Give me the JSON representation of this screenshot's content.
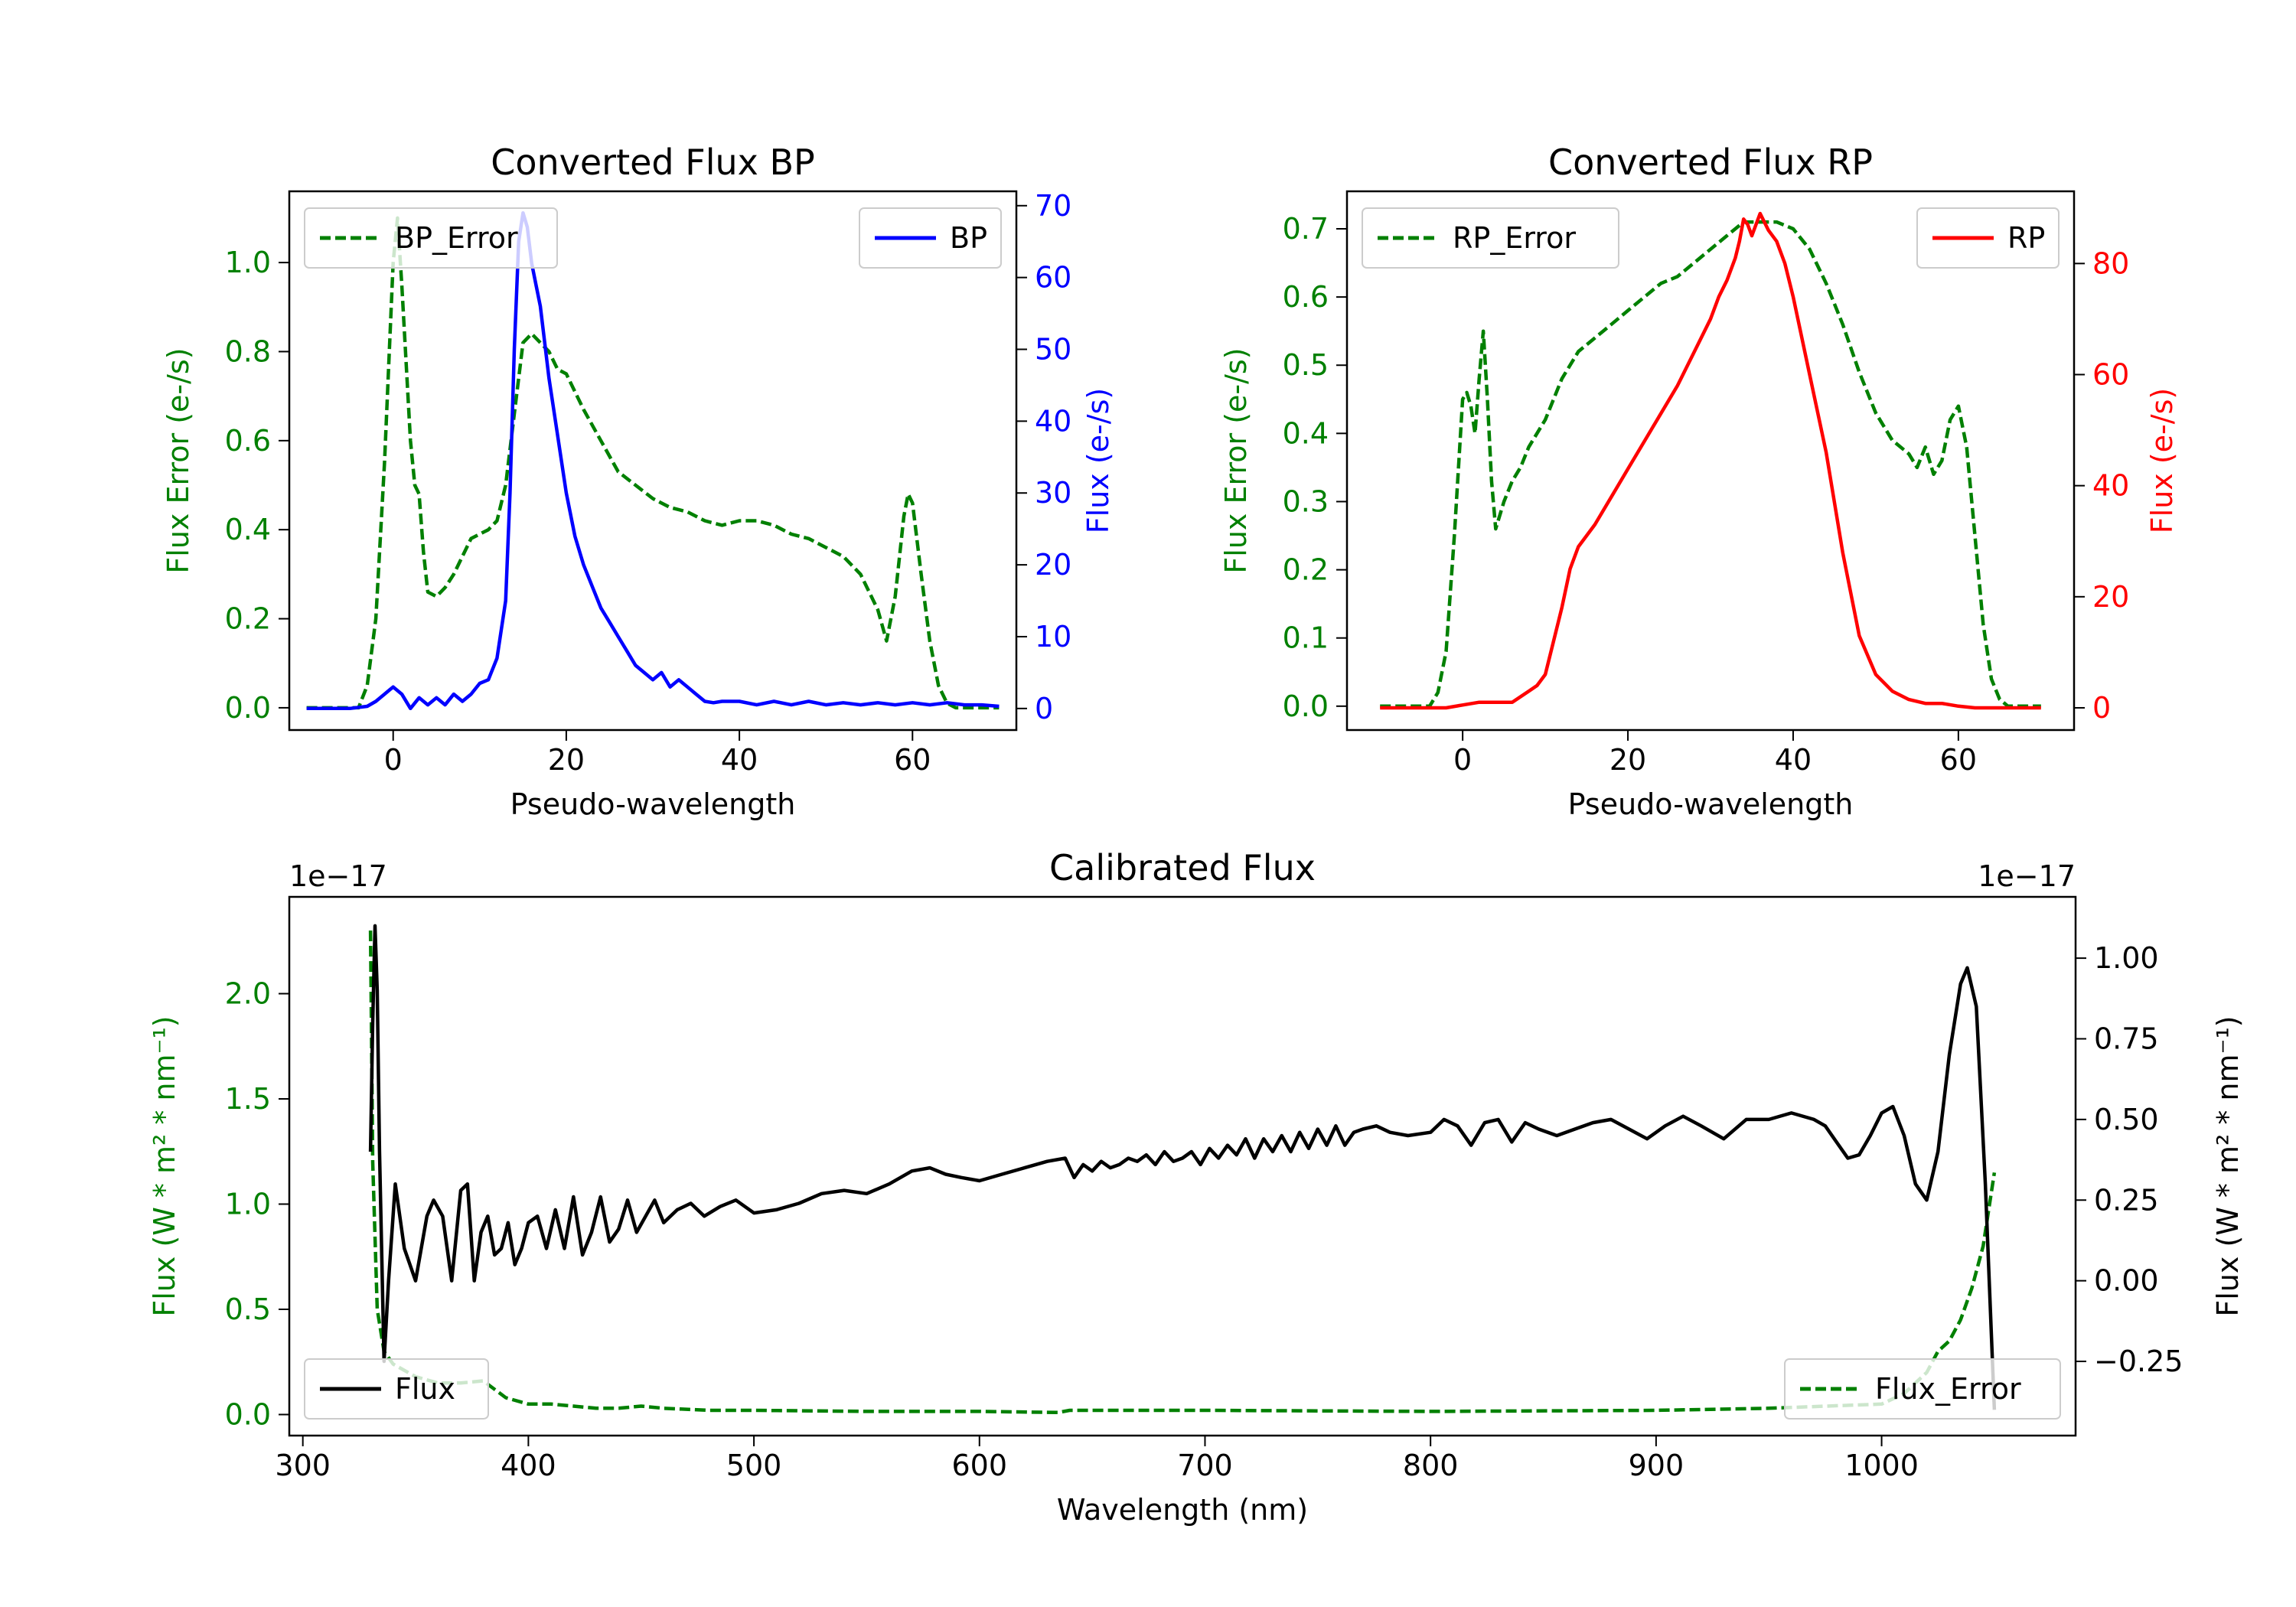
{
  "colors": {
    "bp": "#0000ff",
    "rp": "#ff0000",
    "error": "#008000",
    "flux": "#000000",
    "axis": "#000000"
  },
  "chart_data": [
    {
      "id": "bp",
      "type": "line",
      "title": "Converted Flux BP",
      "xlabel": "Pseudo-wavelength",
      "ylabel_left": "Flux Error (e-/s)",
      "ylabel_right": "Flux (e-/s)",
      "xlim": [
        -12,
        72
      ],
      "ylim_left": [
        -0.05,
        1.16
      ],
      "ylim_right": [
        -3,
        72
      ],
      "xticks": [
        0,
        20,
        40,
        60
      ],
      "yticks_left": [
        0.0,
        0.2,
        0.4,
        0.6,
        0.8,
        1.0
      ],
      "yticks_right": [
        0,
        10,
        20,
        30,
        40,
        50,
        60,
        70
      ],
      "legend_left": {
        "label": "BP_Error",
        "position": "upper-left"
      },
      "legend_right": {
        "label": "BP",
        "position": "upper-right"
      },
      "series_error": {
        "name": "BP_Error",
        "x": [
          -10,
          -4,
          -3,
          -2,
          -1,
          0,
          0.5,
          1,
          2,
          2.5,
          3,
          3.5,
          4,
          5,
          6,
          7,
          8,
          9,
          10,
          11,
          12,
          13,
          14,
          15,
          16,
          17,
          18,
          19,
          20,
          22,
          24,
          26,
          28,
          30,
          32,
          34,
          36,
          38,
          40,
          42,
          44,
          46,
          48,
          50,
          52,
          54,
          56,
          57,
          58,
          59,
          59.5,
          60,
          61,
          62,
          63,
          64,
          65,
          66,
          70
        ],
        "y": [
          0.0,
          0.0,
          0.05,
          0.2,
          0.55,
          1.0,
          1.1,
          0.95,
          0.6,
          0.5,
          0.48,
          0.35,
          0.26,
          0.25,
          0.27,
          0.3,
          0.34,
          0.38,
          0.39,
          0.4,
          0.42,
          0.5,
          0.66,
          0.82,
          0.84,
          0.82,
          0.8,
          0.76,
          0.75,
          0.67,
          0.6,
          0.53,
          0.5,
          0.47,
          0.45,
          0.44,
          0.42,
          0.41,
          0.42,
          0.42,
          0.41,
          0.39,
          0.38,
          0.36,
          0.34,
          0.3,
          0.22,
          0.15,
          0.25,
          0.43,
          0.48,
          0.46,
          0.3,
          0.15,
          0.05,
          0.01,
          0.0,
          0.0,
          0.0
        ]
      },
      "series_flux": {
        "name": "BP",
        "x": [
          -10,
          -5,
          -3,
          -2,
          -1,
          0,
          1,
          2,
          3,
          4,
          5,
          6,
          7,
          8,
          9,
          10,
          11,
          12,
          13,
          13.5,
          14,
          14.5,
          15,
          15.5,
          16,
          16.5,
          17,
          18,
          19,
          20,
          21,
          22,
          23,
          24,
          25,
          26,
          27,
          28,
          29,
          30,
          31,
          32,
          33,
          34,
          35,
          36,
          37,
          38,
          40,
          42,
          44,
          46,
          48,
          50,
          52,
          54,
          56,
          58,
          60,
          62,
          64,
          66,
          68,
          70
        ],
        "y": [
          0,
          0,
          0.3,
          1,
          2,
          3,
          2,
          0,
          1.5,
          0.5,
          1.5,
          0.5,
          2,
          1,
          2,
          3.5,
          4,
          7,
          15,
          30,
          50,
          65,
          69,
          67,
          62,
          59,
          56,
          46,
          38,
          30,
          24,
          20,
          17,
          14,
          12,
          10,
          8,
          6,
          5,
          4,
          5,
          3,
          4,
          3,
          2,
          1,
          0.8,
          1,
          1,
          0.5,
          1,
          0.5,
          1,
          0.5,
          0.8,
          0.5,
          0.8,
          0.5,
          0.8,
          0.5,
          0.8,
          0.5,
          0.5,
          0.3
        ]
      }
    },
    {
      "id": "rp",
      "type": "line",
      "title": "Converted Flux RP",
      "xlabel": "Pseudo-wavelength",
      "ylabel_left": "Flux Error (e-/s)",
      "ylabel_right": "Flux (e-/s)",
      "xlim": [
        -14,
        74
      ],
      "ylim_left": [
        -0.035,
        0.755
      ],
      "ylim_right": [
        -4,
        93
      ],
      "xticks": [
        0,
        20,
        40,
        60
      ],
      "yticks_left": [
        0.0,
        0.1,
        0.2,
        0.3,
        0.4,
        0.5,
        0.6,
        0.7
      ],
      "yticks_right": [
        0,
        20,
        40,
        60,
        80
      ],
      "legend_left": {
        "label": "RP_Error",
        "position": "upper-left"
      },
      "legend_right": {
        "label": "RP",
        "position": "upper-right"
      },
      "series_error": {
        "name": "RP_Error",
        "x": [
          -10,
          -4,
          -3,
          -2,
          -1,
          0,
          0.5,
          1,
          1.5,
          2,
          2.5,
          3,
          3.5,
          4,
          5,
          6,
          7,
          8,
          10,
          12,
          14,
          16,
          18,
          20,
          22,
          24,
          26,
          28,
          30,
          32,
          34,
          36,
          38,
          40,
          42,
          44,
          46,
          48,
          50,
          52,
          54,
          55,
          56,
          57,
          58,
          59,
          60,
          61,
          62,
          63,
          64,
          65,
          66,
          70
        ],
        "y": [
          0.0,
          0.0,
          0.02,
          0.08,
          0.25,
          0.45,
          0.46,
          0.44,
          0.4,
          0.48,
          0.55,
          0.45,
          0.33,
          0.26,
          0.3,
          0.33,
          0.35,
          0.38,
          0.42,
          0.48,
          0.52,
          0.54,
          0.56,
          0.58,
          0.6,
          0.62,
          0.63,
          0.65,
          0.67,
          0.69,
          0.71,
          0.71,
          0.71,
          0.7,
          0.67,
          0.62,
          0.56,
          0.49,
          0.43,
          0.39,
          0.37,
          0.35,
          0.38,
          0.34,
          0.36,
          0.42,
          0.44,
          0.38,
          0.25,
          0.12,
          0.04,
          0.01,
          0.0,
          0.0
        ]
      },
      "series_flux": {
        "name": "RP",
        "x": [
          -10,
          -4,
          -2,
          0,
          2,
          4,
          6,
          8,
          9,
          10,
          11,
          12,
          13,
          14,
          16,
          18,
          20,
          22,
          24,
          26,
          28,
          30,
          31,
          32,
          33,
          33.5,
          34,
          34.5,
          35,
          36,
          37,
          38,
          39,
          40,
          42,
          44,
          46,
          48,
          50,
          52,
          54,
          56,
          58,
          60,
          62,
          64,
          66,
          70
        ],
        "y": [
          0,
          0,
          0,
          0.5,
          1,
          1,
          1,
          3,
          4,
          6,
          12,
          18,
          25,
          29,
          33,
          38,
          43,
          48,
          53,
          58,
          64,
          70,
          74,
          77,
          81,
          84,
          88,
          87,
          85,
          89,
          86,
          84,
          80,
          74,
          60,
          46,
          28,
          13,
          6,
          3,
          1.5,
          0.8,
          0.8,
          0.3,
          0,
          0,
          0,
          0
        ]
      }
    },
    {
      "id": "calibrated",
      "type": "line",
      "title": "Calibrated Flux",
      "xlabel": "Wavelength (nm)",
      "ylabel_left": "Flux (W * m² * nm⁻¹)",
      "ylabel_right": "Flux (W * m² * nm⁻¹)",
      "offset_left": "1e−17",
      "offset_right": "1e−17",
      "xlim": [
        294,
        1086
      ],
      "ylim_left": [
        -0.1,
        2.46
      ],
      "ylim_right": [
        -0.48,
        1.19
      ],
      "xticks": [
        300,
        400,
        500,
        600,
        700,
        800,
        900,
        1000
      ],
      "yticks_left": [
        0.0,
        0.5,
        1.0,
        1.5,
        2.0
      ],
      "yticks_left_labels": [
        "0.0",
        "0.5",
        "1.0",
        "1.5",
        "2.0"
      ],
      "yticks_right": [
        -0.25,
        0.0,
        0.25,
        0.5,
        0.75,
        1.0
      ],
      "yticks_right_labels": [
        "−0.25",
        "0.00",
        "0.25",
        "0.50",
        "0.75",
        "1.00"
      ],
      "legend_flux": {
        "label": "Flux",
        "position": "lower-left"
      },
      "legend_error": {
        "label": "Flux_Error",
        "position": "lower-right"
      },
      "series_error": {
        "name": "Flux_Error",
        "x": [
          330,
          331,
          333,
          336,
          340,
          350,
          360,
          370,
          380,
          385,
          390,
          400,
          410,
          420,
          430,
          440,
          450,
          460,
          480,
          500,
          550,
          600,
          635,
          640,
          700,
          800,
          900,
          950,
          1000,
          1010,
          1020,
          1025,
          1030,
          1035,
          1040,
          1045,
          1050
        ],
        "y": [
          2.3,
          1.2,
          0.5,
          0.3,
          0.24,
          0.18,
          0.15,
          0.15,
          0.16,
          0.12,
          0.08,
          0.05,
          0.05,
          0.04,
          0.03,
          0.03,
          0.04,
          0.03,
          0.02,
          0.02,
          0.015,
          0.015,
          0.01,
          0.02,
          0.02,
          0.015,
          0.02,
          0.03,
          0.05,
          0.1,
          0.2,
          0.3,
          0.35,
          0.45,
          0.6,
          0.8,
          1.15
        ]
      },
      "series_flux": {
        "name": "Flux",
        "x": [
          330,
          331,
          332,
          333,
          334,
          336,
          338,
          341,
          345,
          350,
          355,
          358,
          362,
          366,
          370,
          373,
          376,
          379,
          382,
          385,
          388,
          391,
          394,
          397,
          400,
          404,
          408,
          412,
          416,
          420,
          424,
          428,
          432,
          436,
          440,
          444,
          448,
          452,
          456,
          460,
          466,
          472,
          478,
          485,
          492,
          500,
          510,
          520,
          530,
          540,
          550,
          560,
          570,
          578,
          585,
          592,
          600,
          610,
          620,
          630,
          638,
          642,
          646,
          650,
          654,
          658,
          662,
          666,
          670,
          674,
          678,
          682,
          686,
          690,
          694,
          698,
          702,
          706,
          710,
          714,
          718,
          722,
          726,
          730,
          734,
          738,
          742,
          746,
          750,
          754,
          758,
          762,
          766,
          770,
          776,
          782,
          790,
          800,
          806,
          812,
          818,
          824,
          830,
          836,
          842,
          848,
          856,
          864,
          872,
          880,
          888,
          896,
          904,
          912,
          920,
          930,
          940,
          950,
          960,
          970,
          975,
          980,
          985,
          990,
          995,
          1000,
          1005,
          1010,
          1015,
          1020,
          1025,
          1030,
          1035,
          1038,
          1042,
          1046,
          1050
        ],
        "y": [
          0.4,
          0.8,
          1.1,
          0.9,
          0.4,
          -0.25,
          0.0,
          0.3,
          0.1,
          0.0,
          0.2,
          0.25,
          0.2,
          0.0,
          0.28,
          0.3,
          0.0,
          0.15,
          0.2,
          0.08,
          0.1,
          0.18,
          0.05,
          0.1,
          0.18,
          0.2,
          0.1,
          0.22,
          0.1,
          0.26,
          0.08,
          0.15,
          0.26,
          0.12,
          0.16,
          0.25,
          0.15,
          0.2,
          0.25,
          0.18,
          0.22,
          0.24,
          0.2,
          0.23,
          0.25,
          0.21,
          0.22,
          0.24,
          0.27,
          0.28,
          0.27,
          0.3,
          0.34,
          0.35,
          0.33,
          0.32,
          0.31,
          0.33,
          0.35,
          0.37,
          0.38,
          0.32,
          0.36,
          0.34,
          0.37,
          0.35,
          0.36,
          0.38,
          0.37,
          0.39,
          0.36,
          0.4,
          0.37,
          0.38,
          0.4,
          0.36,
          0.41,
          0.38,
          0.42,
          0.39,
          0.44,
          0.38,
          0.44,
          0.4,
          0.45,
          0.4,
          0.46,
          0.41,
          0.47,
          0.42,
          0.48,
          0.42,
          0.46,
          0.47,
          0.48,
          0.46,
          0.45,
          0.46,
          0.5,
          0.48,
          0.42,
          0.49,
          0.5,
          0.43,
          0.49,
          0.47,
          0.45,
          0.47,
          0.49,
          0.5,
          0.47,
          0.44,
          0.48,
          0.51,
          0.48,
          0.44,
          0.5,
          0.5,
          0.52,
          0.5,
          0.48,
          0.43,
          0.38,
          0.39,
          0.45,
          0.52,
          0.54,
          0.45,
          0.3,
          0.25,
          0.4,
          0.7,
          0.92,
          0.97,
          0.85,
          0.3,
          -0.4
        ]
      }
    }
  ]
}
